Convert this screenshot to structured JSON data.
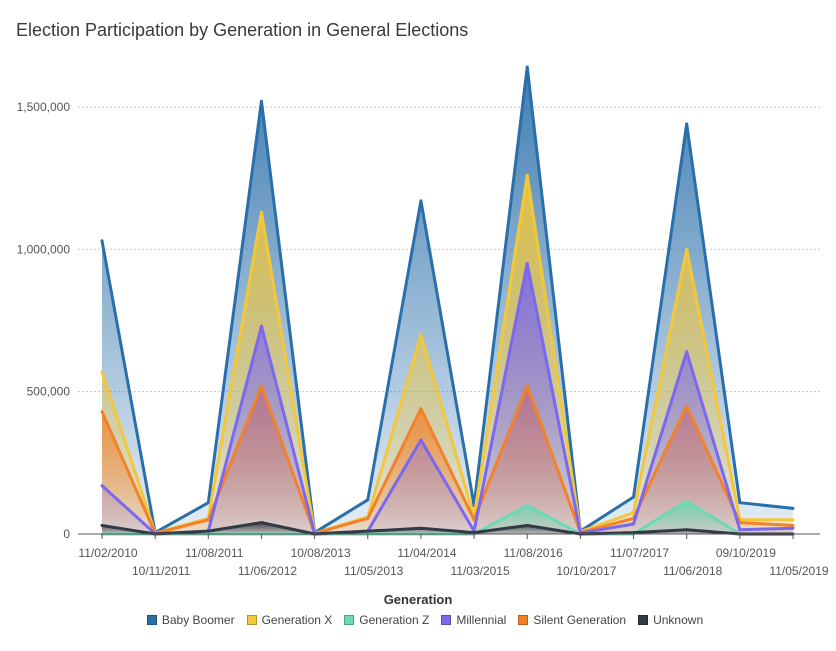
{
  "chart_data": {
    "type": "area",
    "title": "Election Participation by Generation in General Elections",
    "xlabel": "",
    "ylabel": "",
    "legend_title": "Generation",
    "legend_position": "bottom",
    "grid": true,
    "ylim": [
      0,
      1700000
    ],
    "yticks": [
      0,
      500000,
      1000000,
      1500000
    ],
    "ytick_labels": [
      "0",
      "500,000",
      "1,000,000",
      "1,500,000"
    ],
    "categories": [
      "11/02/2010",
      "10/11/2011",
      "11/08/2011",
      "11/06/2012",
      "10/08/2013",
      "11/05/2013",
      "11/04/2014",
      "11/03/2015",
      "11/08/2016",
      "10/10/2017",
      "11/07/2017",
      "11/06/2018",
      "09/10/2019",
      "11/05/2019"
    ],
    "series": [
      {
        "name": "Baby Boomer",
        "color": "#2a6faa",
        "values": [
          1030000,
          5000,
          110000,
          1520000,
          5000,
          120000,
          1170000,
          100000,
          1640000,
          10000,
          130000,
          1440000,
          110000,
          90000
        ]
      },
      {
        "name": "Generation X",
        "color": "#f3c73a",
        "values": [
          570000,
          3000,
          55000,
          1130000,
          3000,
          60000,
          700000,
          60000,
          1260000,
          8000,
          75000,
          1000000,
          50000,
          50000
        ]
      },
      {
        "name": "Silent Generation",
        "color": "#f5802a",
        "values": [
          430000,
          2000,
          50000,
          520000,
          2000,
          55000,
          440000,
          50000,
          520000,
          5000,
          55000,
          450000,
          40000,
          30000
        ]
      },
      {
        "name": "Millennial",
        "color": "#7b68ee",
        "values": [
          170000,
          1000,
          10000,
          730000,
          1000,
          10000,
          330000,
          10000,
          950000,
          3000,
          35000,
          640000,
          15000,
          20000
        ]
      },
      {
        "name": "Generation Z",
        "color": "#6ad9b4",
        "values": [
          0,
          0,
          0,
          0,
          0,
          0,
          0,
          0,
          100000,
          0,
          0,
          115000,
          0,
          0
        ]
      },
      {
        "name": "Unknown",
        "color": "#333a44",
        "values": [
          30000,
          0,
          10000,
          40000,
          0,
          10000,
          20000,
          5000,
          30000,
          0,
          5000,
          15000,
          0,
          0
        ]
      }
    ]
  },
  "legend": {
    "items": [
      {
        "name": "Baby Boomer",
        "color": "#2a6faa"
      },
      {
        "name": "Generation X",
        "color": "#f3c73a"
      },
      {
        "name": "Generation Z",
        "color": "#6ad9b4"
      },
      {
        "name": "Millennial",
        "color": "#7b68ee"
      },
      {
        "name": "Silent Generation",
        "color": "#f5802a"
      },
      {
        "name": "Unknown",
        "color": "#333a44"
      }
    ]
  }
}
